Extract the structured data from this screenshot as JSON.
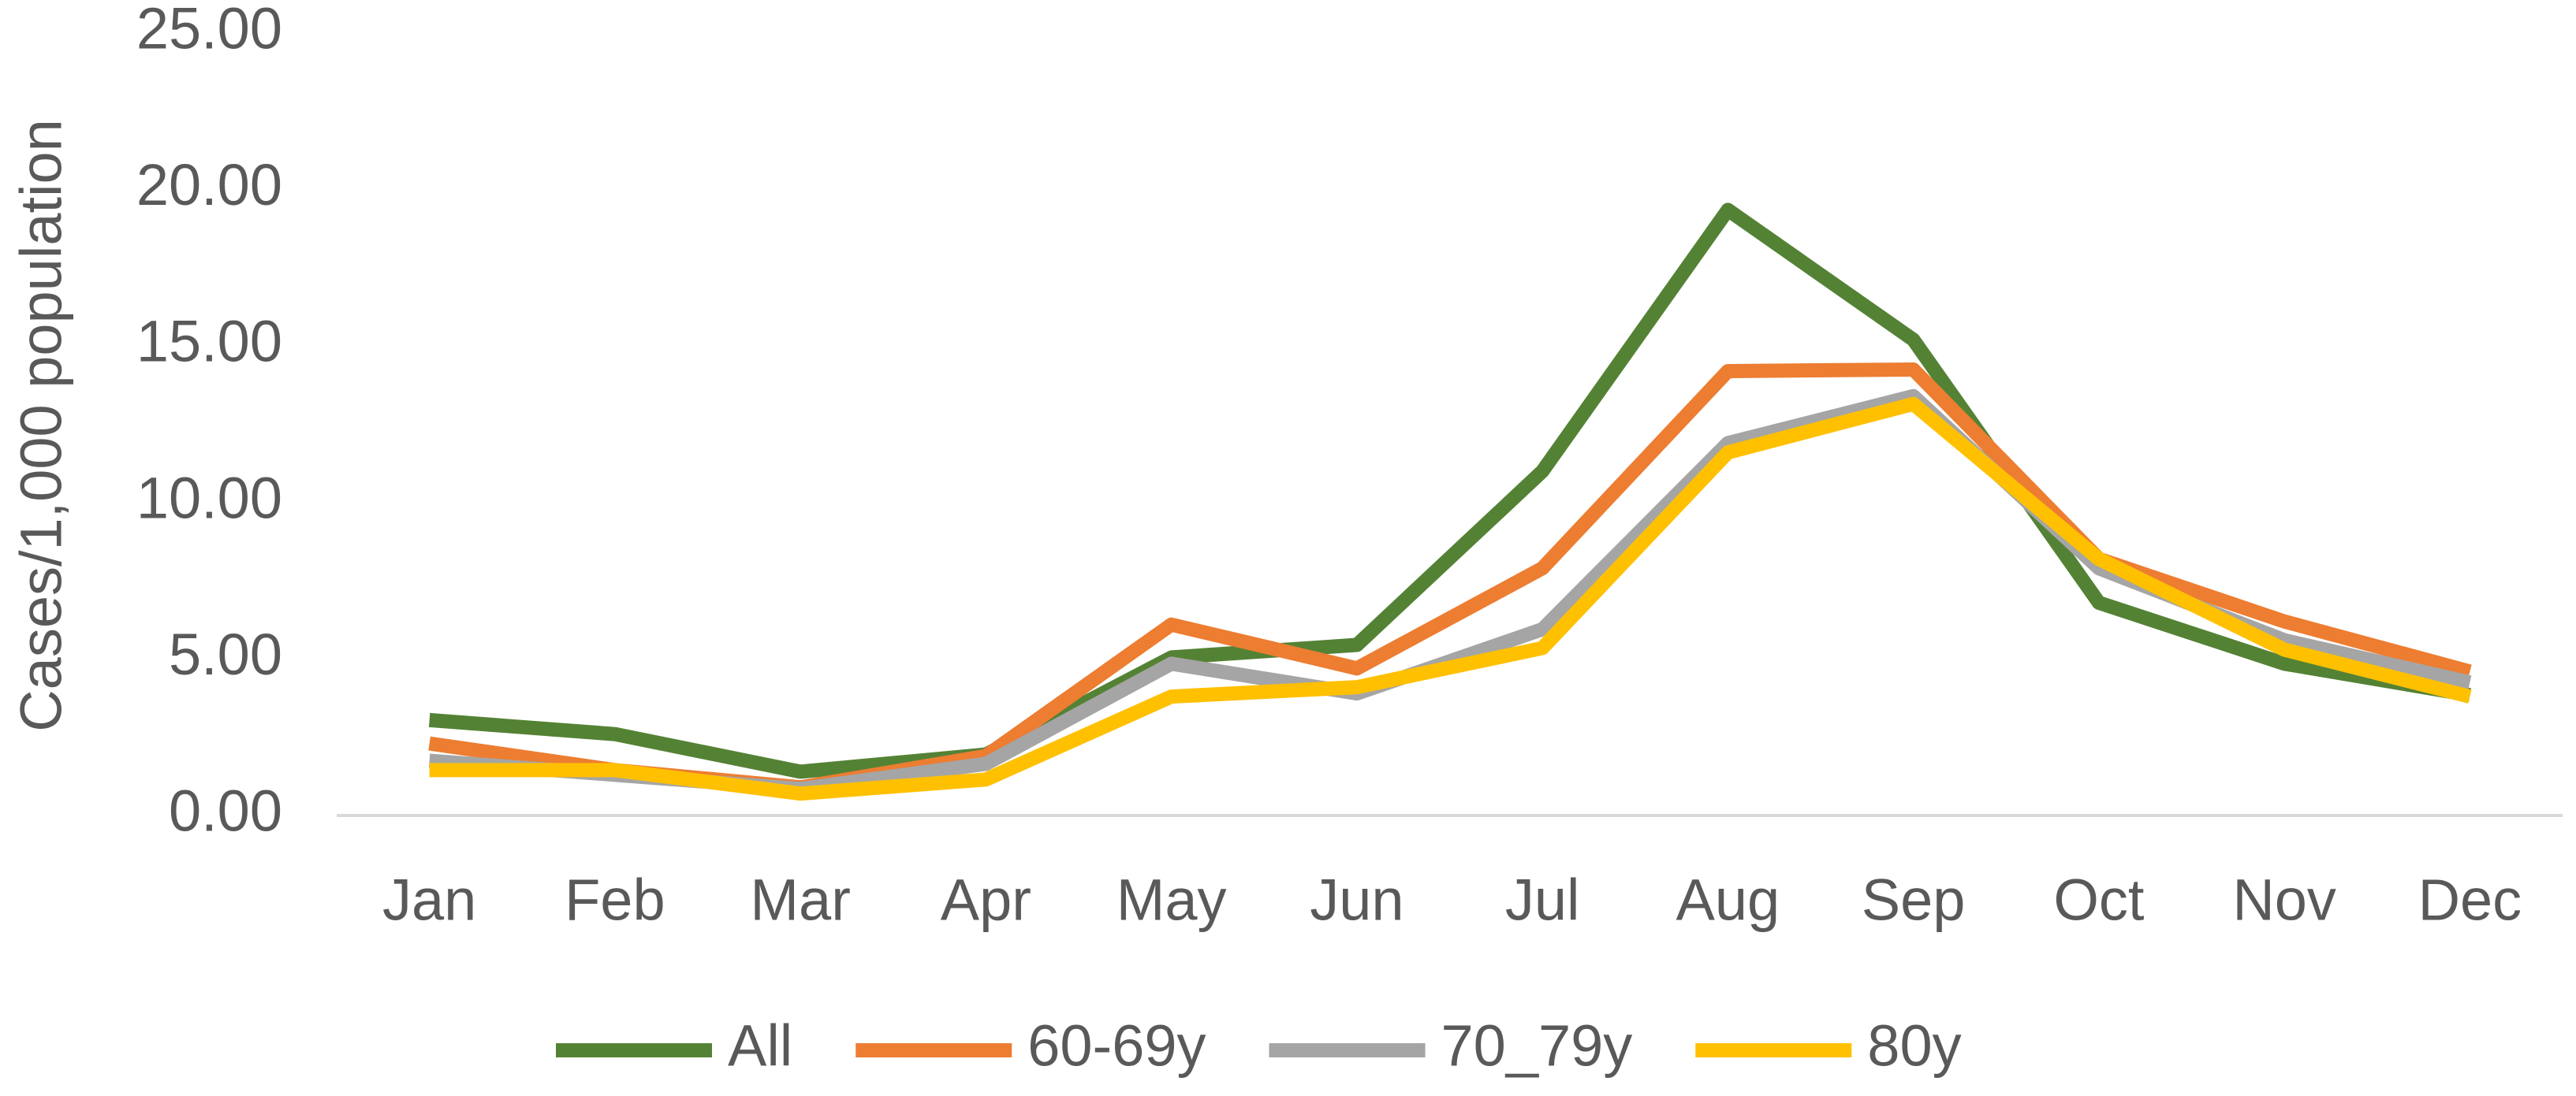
{
  "chart_data": {
    "type": "line",
    "y_label": "Cases/1,000 population",
    "categories": [
      "Jan",
      "Feb",
      "Mar",
      "Apr",
      "May",
      "Jun",
      "Jul",
      "Aug",
      "Sep",
      "Oct",
      "Nov",
      "Dec"
    ],
    "series": [
      {
        "name": "All",
        "color": "#548235",
        "values": [
          3.05,
          2.6,
          1.4,
          1.95,
          5.05,
          5.45,
          11.0,
          19.35,
          15.2,
          6.8,
          4.85,
          3.85
        ]
      },
      {
        "name": "60-69y",
        "color": "#ed7d31",
        "values": [
          2.3,
          1.45,
          0.9,
          1.9,
          6.1,
          4.7,
          7.9,
          14.2,
          14.25,
          8.2,
          6.2,
          4.6
        ]
      },
      {
        "name": "70_79y",
        "color": "#a5a5a5",
        "values": [
          1.75,
          1.3,
          0.85,
          1.65,
          4.85,
          3.9,
          5.95,
          11.9,
          13.4,
          7.9,
          5.6,
          4.25
        ]
      },
      {
        "name": "80y",
        "color": "#ffc000",
        "values": [
          1.45,
          1.45,
          0.7,
          1.15,
          3.8,
          4.1,
          5.35,
          11.6,
          13.15,
          8.2,
          5.3,
          3.8
        ]
      }
    ],
    "ylim": [
      0,
      25
    ],
    "yticks": [
      {
        "value": 0,
        "label": "0.00"
      },
      {
        "value": 5,
        "label": "5.00"
      },
      {
        "value": 10,
        "label": "10.00"
      },
      {
        "value": 15,
        "label": "15.00"
      },
      {
        "value": 20,
        "label": "20.00"
      },
      {
        "value": 25,
        "label": "25.00"
      }
    ],
    "grid": false,
    "legend": "bottom"
  }
}
